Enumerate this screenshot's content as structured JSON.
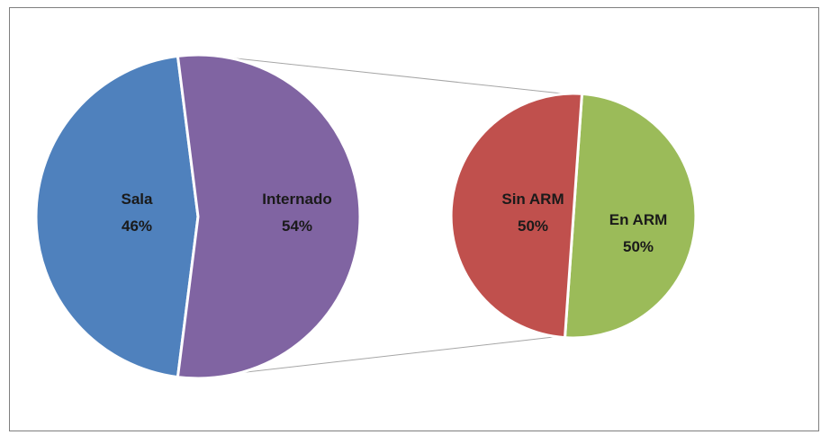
{
  "chart_data": {
    "type": "pie",
    "variant": "pie-of-pie",
    "title": "",
    "main_pie": {
      "categories": [
        "Sala",
        "Internado"
      ],
      "values": [
        46,
        54
      ],
      "labels": [
        {
          "name": "Sala",
          "percent": "46%"
        },
        {
          "name": "Internado",
          "percent": "54%"
        }
      ],
      "colors": [
        "#4f81bd",
        "#8064a2"
      ]
    },
    "secondary_pie": {
      "parent_category": "Internado",
      "categories": [
        "Sin ARM",
        "En ARM"
      ],
      "values": [
        50,
        50
      ],
      "labels": [
        {
          "name": "Sin ARM",
          "percent": "50%"
        },
        {
          "name": "En ARM",
          "percent": "50%"
        }
      ],
      "colors": [
        "#c0504d",
        "#9bbb59"
      ]
    },
    "legend": "none",
    "connector_color": "#a6a6a6"
  }
}
